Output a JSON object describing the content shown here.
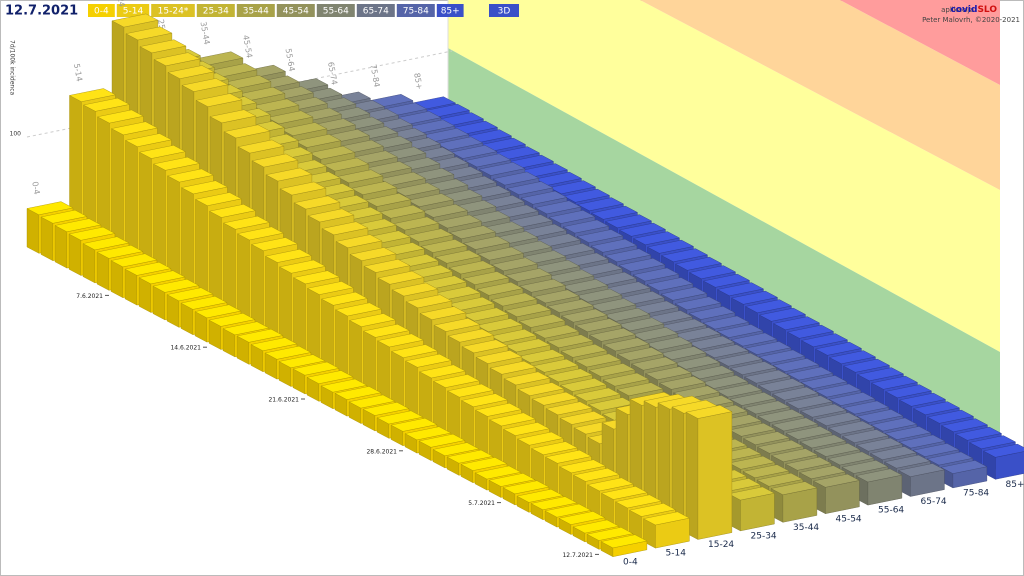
{
  "header": {
    "date": "12.7.2021",
    "mode_button": "3D",
    "credit_prefix": "aplikacija",
    "credit_brand_a": "covid",
    "credit_brand_b": "SLO",
    "credit_author": "Peter Malovrh, ©2020-2021"
  },
  "chart_data": {
    "type": "bar3d",
    "y_label": "7d/100k incidenca",
    "x": [
      null,
      null,
      null,
      null,
      null,
      null,
      "7.6.2021",
      null,
      null,
      null,
      null,
      null,
      null,
      "14.6.2021",
      null,
      null,
      null,
      null,
      null,
      null,
      "21.6.2021",
      null,
      null,
      null,
      null,
      null,
      null,
      "28.6.2021",
      null,
      null,
      null,
      null,
      null,
      null,
      "5.7.2021",
      null,
      null,
      null,
      null,
      null,
      null,
      "12.7.2021"
    ],
    "age_labels": [
      "0-4",
      "5-14",
      "15-24",
      "25-34",
      "35-44",
      "45-54",
      "55-64",
      "65-74",
      "75-84",
      "85+"
    ],
    "ylim": [
      0,
      400
    ],
    "yticks": [
      100
    ],
    "grid": true,
    "series": [
      {
        "name": "0-4",
        "color": "#f5d000",
        "values": [
          35,
          34,
          33,
          32,
          30,
          29,
          28,
          27,
          26,
          25,
          24,
          23,
          22,
          21,
          20,
          20,
          19,
          18,
          17,
          17,
          16,
          15,
          15,
          14,
          14,
          13,
          13,
          12,
          12,
          11,
          11,
          11,
          10,
          10,
          10,
          9,
          9,
          9,
          9,
          8,
          8,
          8
        ]
      },
      {
        "name": "5-14",
        "color": "#ebcb14",
        "values": [
          130,
          128,
          124,
          120,
          116,
          112,
          108,
          104,
          100,
          96,
          92,
          88,
          85,
          82,
          78,
          75,
          72,
          69,
          66,
          63,
          60,
          57,
          55,
          52,
          50,
          47,
          45,
          43,
          41,
          39,
          37,
          35,
          33,
          31,
          30,
          28,
          27,
          25,
          24,
          23,
          22,
          21
        ]
      },
      {
        "name": "15-24*",
        "color": "#dcc224",
        "values": [
          190,
          185,
          180,
          175,
          170,
          165,
          158,
          150,
          143,
          136,
          130,
          124,
          118,
          112,
          107,
          102,
          97,
          92,
          88,
          84,
          80,
          76,
          72,
          68,
          65,
          62,
          59,
          56,
          53,
          50,
          48,
          46,
          44,
          42,
          40,
          60,
          80,
          95,
          100,
          105,
          108,
          110
        ]
      },
      {
        "name": "25-34",
        "color": "#c2b434",
        "values": [
          150,
          146,
          142,
          138,
          134,
          130,
          125,
          120,
          115,
          110,
          106,
          102,
          98,
          94,
          90,
          86,
          82,
          78,
          75,
          72,
          69,
          66,
          63,
          60,
          57,
          55,
          52,
          50,
          48,
          46,
          44,
          42,
          40,
          38,
          36,
          34,
          33,
          32,
          31,
          30,
          29,
          28
        ]
      },
      {
        "name": "35-44",
        "color": "#a8a248",
        "values": [
          140,
          136,
          132,
          128,
          124,
          120,
          116,
          112,
          108,
          104,
          100,
          96,
          92,
          88,
          84,
          80,
          77,
          74,
          71,
          68,
          65,
          62,
          59,
          56,
          53,
          51,
          49,
          47,
          45,
          43,
          41,
          39,
          37,
          35,
          33,
          31,
          30,
          29,
          28,
          27,
          26,
          25
        ]
      },
      {
        "name": "45-54",
        "color": "#93925c",
        "values": [
          120,
          117,
          114,
          111,
          108,
          105,
          102,
          99,
          96,
          93,
          90,
          87,
          84,
          81,
          78,
          75,
          72,
          69,
          66,
          63,
          60,
          57,
          55,
          53,
          51,
          49,
          47,
          45,
          43,
          41,
          39,
          37,
          35,
          33,
          31,
          30,
          29,
          28,
          27,
          26,
          25,
          24
        ]
      },
      {
        "name": "55-64",
        "color": "#808470",
        "values": [
          100,
          98,
          96,
          94,
          92,
          90,
          88,
          85,
          82,
          79,
          76,
          73,
          70,
          67,
          64,
          62,
          60,
          58,
          56,
          54,
          52,
          50,
          48,
          46,
          44,
          42,
          40,
          38,
          36,
          34,
          32,
          31,
          30,
          29,
          28,
          27,
          26,
          25,
          24,
          23,
          22,
          21
        ]
      },
      {
        "name": "65-74",
        "color": "#6c7488",
        "values": [
          80,
          79,
          78,
          76,
          74,
          72,
          70,
          68,
          66,
          64,
          62,
          60,
          58,
          56,
          54,
          52,
          50,
          48,
          46,
          44,
          42,
          40,
          38,
          36,
          35,
          34,
          33,
          32,
          31,
          30,
          29,
          28,
          27,
          26,
          25,
          24,
          23,
          22,
          21,
          20,
          19,
          18
        ]
      },
      {
        "name": "75-84",
        "color": "#5564a8",
        "values": [
          70,
          69,
          68,
          67,
          66,
          65,
          64,
          63,
          62,
          60,
          58,
          56,
          54,
          52,
          50,
          48,
          46,
          44,
          42,
          40,
          38,
          36,
          34,
          32,
          30,
          29,
          28,
          27,
          26,
          25,
          24,
          23,
          22,
          21,
          20,
          19,
          18,
          17,
          16,
          15,
          14,
          13
        ]
      },
      {
        "name": "85+",
        "color": "#3a50c8",
        "values": [
          60,
          60,
          59,
          58,
          57,
          56,
          55,
          54,
          53,
          52,
          51,
          50,
          49,
          48,
          47,
          46,
          45,
          44,
          43,
          42,
          41,
          40,
          39,
          38,
          37,
          36,
          35,
          34,
          33,
          32,
          31,
          30,
          29,
          28,
          27,
          26,
          25,
          24,
          23,
          22,
          21,
          20
        ]
      }
    ]
  }
}
